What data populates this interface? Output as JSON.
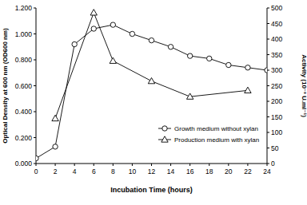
{
  "chart_data": {
    "type": "line",
    "x_label": "Incubation Time (hours)",
    "y_label": "Optical Density at 600 nm (OD600 nm)",
    "y2_label": "Activity (10⁻³ U.ml⁻¹)",
    "xlim": [
      0,
      24
    ],
    "xticks": [
      0,
      2,
      4,
      6,
      8,
      10,
      12,
      14,
      16,
      18,
      20,
      22,
      24
    ],
    "ylim": [
      0,
      1.2
    ],
    "yticks": [
      {
        "value": 0,
        "label": "0.000"
      },
      {
        "value": 0.2,
        "label": "0.200"
      },
      {
        "value": 0.4,
        "label": "0.400"
      },
      {
        "value": 0.6,
        "label": "0.600"
      },
      {
        "value": 0.8,
        "label": "0.800"
      },
      {
        "value": 1.0,
        "label": "1.000"
      },
      {
        "value": 1.2,
        "label": "1.200"
      }
    ],
    "y2lim": [
      0,
      500
    ],
    "y2ticks": [
      0,
      50,
      100,
      150,
      200,
      250,
      300,
      350,
      400,
      450,
      500
    ],
    "grid": false,
    "legend": "lower right",
    "series": [
      {
        "name": "Growth medium without xylan",
        "color": "#000000",
        "marker": "circle",
        "line_style": "solid",
        "x": [
          0,
          2,
          4,
          6,
          8,
          10,
          12,
          14,
          16,
          18,
          20,
          22,
          24
        ],
        "values": [
          0.04,
          0.13,
          0.92,
          1.04,
          1.07,
          1.0,
          0.95,
          0.9,
          0.83,
          0.81,
          0.76,
          0.74,
          0.72
        ]
      },
      {
        "name": "Production medium with xylan",
        "color": "#000000",
        "marker": "triangle",
        "line_style": "solid",
        "axis": "y2",
        "x": [
          2,
          6,
          8,
          12,
          16,
          22
        ],
        "values": [
          145,
          485,
          330,
          265,
          215,
          235
        ]
      }
    ]
  }
}
